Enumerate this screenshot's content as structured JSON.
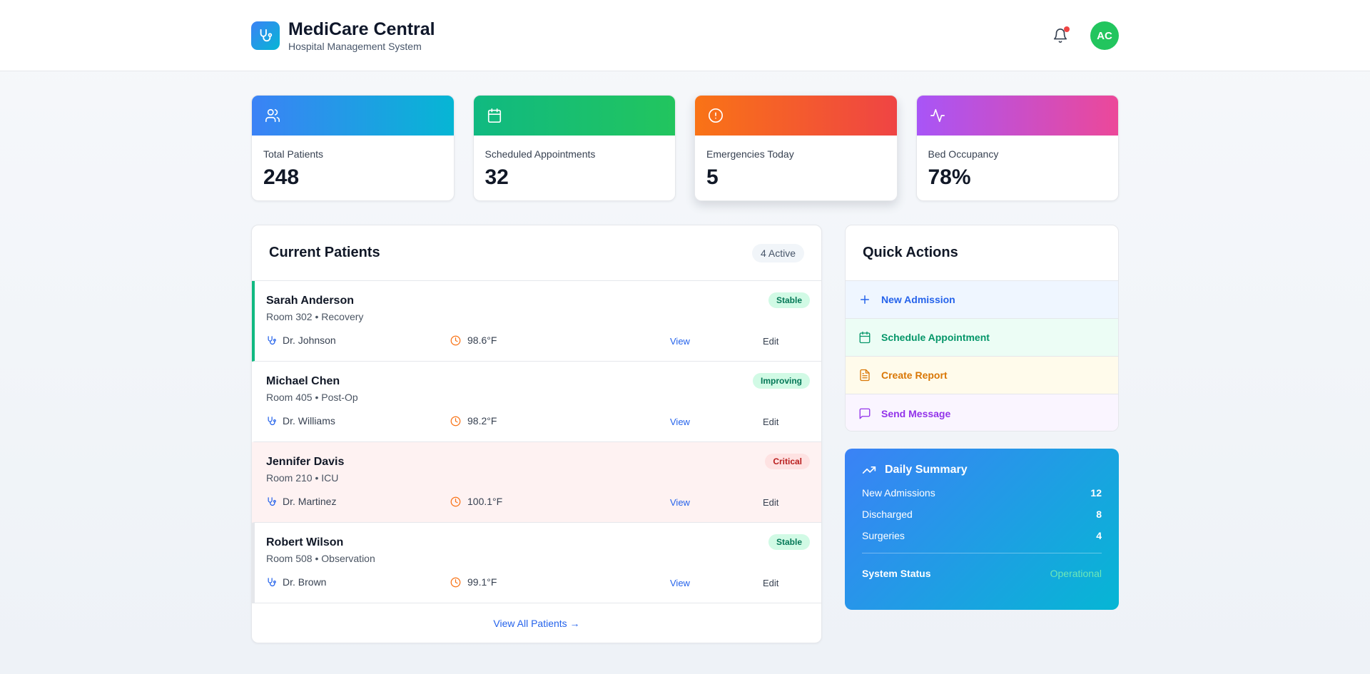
{
  "app": {
    "title": "MediCare Central",
    "subtitle": "Hospital Management System",
    "user_initials": "AC"
  },
  "stats": [
    {
      "label": "Total Patients",
      "value": "248",
      "icon": "users-icon",
      "gradient": [
        "#3b82f6",
        "#06b6d4"
      ]
    },
    {
      "label": "Scheduled Appointments",
      "value": "32",
      "icon": "calendar-icon",
      "gradient": [
        "#10b981",
        "#22c55e"
      ]
    },
    {
      "label": "Emergencies Today",
      "value": "5",
      "icon": "alert-circle-icon",
      "gradient": [
        "#f97316",
        "#ef4444"
      ]
    },
    {
      "label": "Bed Occupancy",
      "value": "78%",
      "icon": "activity-icon",
      "gradient": [
        "#a855f7",
        "#ec4899"
      ]
    }
  ],
  "patients": {
    "title": "Current Patients",
    "active_badge": "4 Active",
    "view_all": "View All Patients →",
    "view_label": "View",
    "edit_label": "Edit",
    "rows": [
      {
        "name": "Sarah Anderson",
        "room": "Room 302 • Recovery",
        "doctor": "Dr. Johnson",
        "temp": "98.6°F",
        "status": "Stable",
        "status_bg": "#d1fae5",
        "status_fg": "#047857",
        "accent": "#10b981",
        "critical": false
      },
      {
        "name": "Michael Chen",
        "room": "Room 405 • Post-Op",
        "doctor": "Dr. Williams",
        "temp": "98.2°F",
        "status": "Improving",
        "status_bg": "#d1fae5",
        "status_fg": "#047857",
        "accent": "transparent",
        "critical": false
      },
      {
        "name": "Jennifer Davis",
        "room": "Room 210 • ICU",
        "doctor": "Dr. Martinez",
        "temp": "100.1°F",
        "status": "Critical",
        "status_bg": "#fee2e2",
        "status_fg": "#b91c1c",
        "accent": "transparent",
        "critical": true
      },
      {
        "name": "Robert Wilson",
        "room": "Room 508 • Observation",
        "doctor": "Dr. Brown",
        "temp": "99.1°F",
        "status": "Stable",
        "status_bg": "#d1fae5",
        "status_fg": "#047857",
        "accent": "#e5e7eb",
        "critical": false
      }
    ]
  },
  "quick_actions": {
    "title": "Quick Actions",
    "items": [
      {
        "label": "New Admission",
        "icon": "plus-icon",
        "color": "#2563eb",
        "bg": "#eff6ff"
      },
      {
        "label": "Schedule Appointment",
        "icon": "calendar-icon",
        "color": "#059669",
        "bg": "#ecfdf5"
      },
      {
        "label": "Create Report",
        "icon": "file-text-icon",
        "color": "#d97706",
        "bg": "#fffbeb"
      },
      {
        "label": "Send Message",
        "icon": "message-square-icon",
        "color": "#9333ea",
        "bg": "#faf5ff"
      }
    ]
  },
  "summary": {
    "title": "Daily Summary",
    "rows": [
      {
        "label": "New Admissions",
        "value": "12"
      },
      {
        "label": "Discharged",
        "value": "8"
      },
      {
        "label": "Surgeries",
        "value": "4"
      }
    ],
    "status_label": "System Status",
    "status_value": "Operational"
  }
}
